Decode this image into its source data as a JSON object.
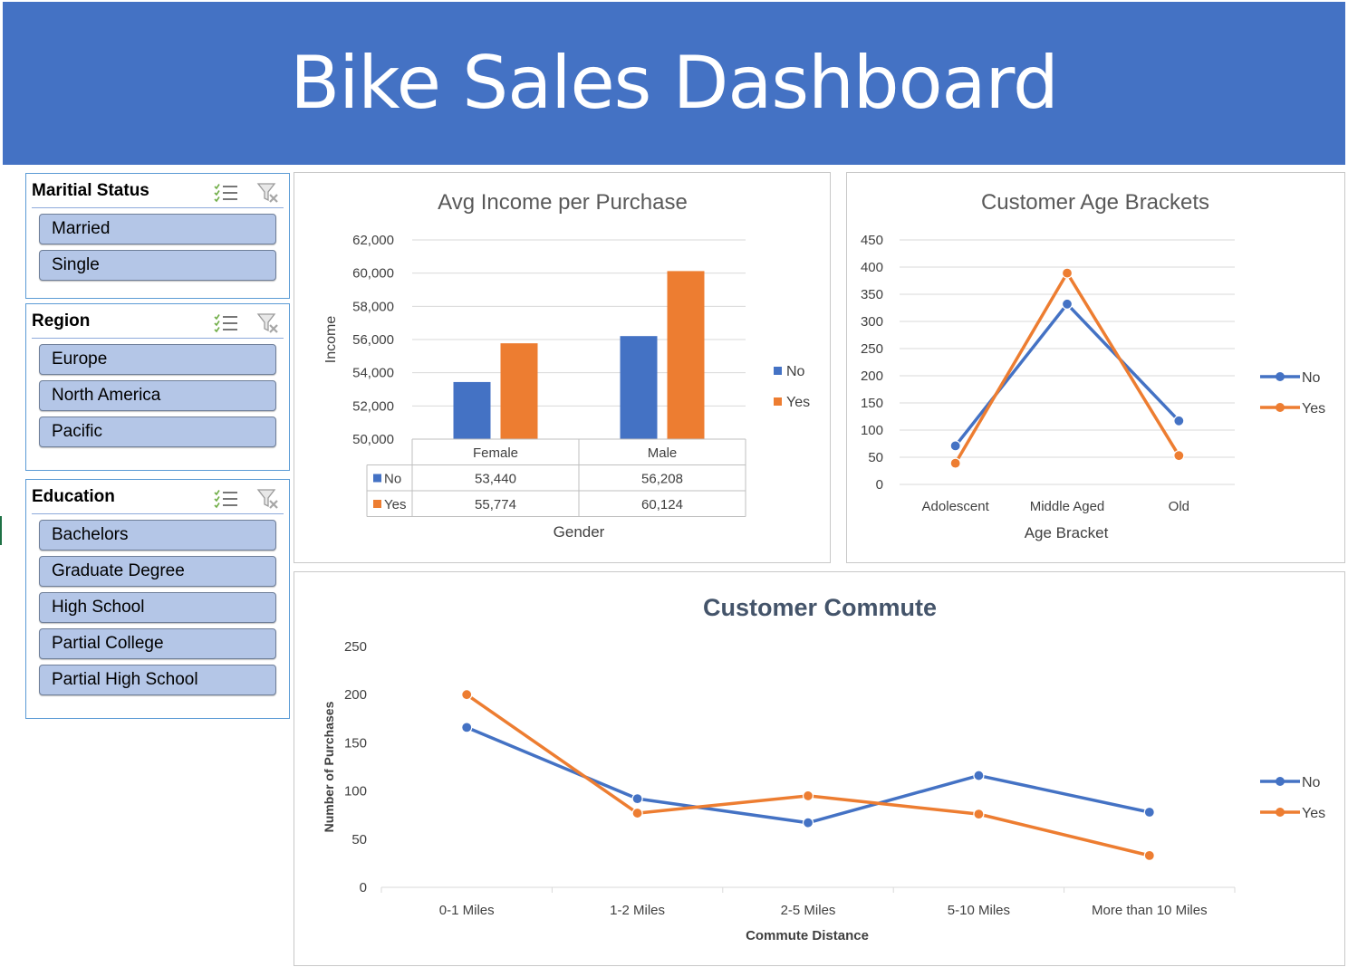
{
  "header": {
    "title": "Bike Sales Dashboard",
    "color": "#4472c4"
  },
  "slicers": [
    {
      "title": "Maritial Status",
      "items": [
        "Married",
        "Single"
      ]
    },
    {
      "title": "Region",
      "items": [
        "Europe",
        "North America",
        "Pacific"
      ]
    },
    {
      "title": "Education",
      "items": [
        "Bachelors",
        "Graduate Degree",
        "High School",
        "Partial College",
        "Partial High School"
      ]
    }
  ],
  "chart_data": [
    {
      "type": "bar",
      "title": "Avg Income per Purchase",
      "xlabel": "Gender",
      "ylabel": "Income",
      "categories": [
        "Female",
        "Male"
      ],
      "series": [
        {
          "name": "No",
          "values": [
            53440,
            56208
          ],
          "labels": [
            "53,440",
            "56,208"
          ],
          "color": "#4472c4"
        },
        {
          "name": "Yes",
          "values": [
            55774,
            60124
          ],
          "labels": [
            "55,774",
            "60,124"
          ],
          "color": "#ed7d31"
        }
      ],
      "ylim": [
        50000,
        62000
      ],
      "yticks": [
        "50,000",
        "52,000",
        "54,000",
        "56,000",
        "58,000",
        "60,000",
        "62,000"
      ],
      "grid": true,
      "legend": "right",
      "data_table": true
    },
    {
      "type": "line",
      "title": "Customer Age Brackets",
      "xlabel": "Age Bracket",
      "ylabel": "",
      "categories": [
        "Adolescent",
        "Middle Aged",
        "Old"
      ],
      "series": [
        {
          "name": "No",
          "values": [
            71,
            332,
            117
          ],
          "color": "#4472c4"
        },
        {
          "name": "Yes",
          "values": [
            39,
            389,
            53
          ],
          "color": "#ed7d31"
        }
      ],
      "ylim": [
        0,
        450
      ],
      "yticks": [
        "0",
        "50",
        "100",
        "150",
        "200",
        "250",
        "300",
        "350",
        "400",
        "450"
      ],
      "grid": true,
      "legend": "right"
    },
    {
      "type": "line",
      "title": "Customer Commute",
      "xlabel": "Commute Distance",
      "ylabel": "Number of Purchases",
      "categories": [
        "0-1 Miles",
        "1-2 Miles",
        "2-5 Miles",
        "5-10 Miles",
        "More than 10 Miles"
      ],
      "series": [
        {
          "name": "No",
          "values": [
            166,
            92,
            67,
            116,
            78
          ],
          "color": "#4472c4"
        },
        {
          "name": "Yes",
          "values": [
            200,
            77,
            95,
            76,
            33
          ],
          "color": "#ed7d31"
        }
      ],
      "ylim": [
        0,
        250
      ],
      "yticks": [
        "0",
        "50",
        "100",
        "150",
        "200",
        "250"
      ],
      "grid": false,
      "legend": "right"
    }
  ]
}
